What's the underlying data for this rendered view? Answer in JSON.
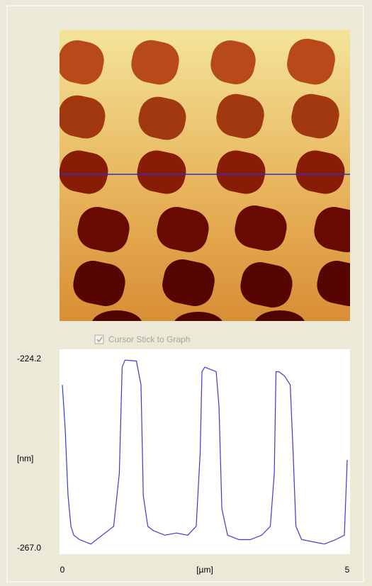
{
  "checkbox": {
    "label": "Cursor Stick to Graph",
    "checked": true
  },
  "profile": {
    "type": "line",
    "color": "#3a3ad0",
    "y_label": "[nm]",
    "x_label": "[µm]",
    "xlim": [
      0,
      5
    ],
    "xticks": [
      0,
      5
    ],
    "ylim": [
      -267.0,
      -224.2
    ],
    "yticks": [
      {
        "value": -267.0,
        "label": "-267.0"
      },
      -224.2
    ],
    "x": [
      0,
      0.05,
      0.1,
      0.15,
      0.2,
      0.3,
      0.5,
      0.7,
      0.9,
      1.0,
      1.05,
      1.1,
      1.2,
      1.3,
      1.38,
      1.42,
      1.5,
      1.6,
      1.8,
      2.0,
      2.2,
      2.35,
      2.42,
      2.45,
      2.5,
      2.6,
      2.7,
      2.75,
      2.8,
      2.9,
      3.1,
      3.3,
      3.5,
      3.65,
      3.72,
      3.75,
      3.8,
      3.9,
      4.0,
      4.05,
      4.1,
      4.2,
      4.4,
      4.6,
      4.8,
      4.95,
      5.0
    ],
    "values": [
      -230,
      -240,
      -255,
      -262,
      -264,
      -265,
      -266,
      -264,
      -262,
      -250,
      -226,
      -224.4,
      -224.5,
      -224.6,
      -230,
      -255,
      -262,
      -263,
      -264,
      -263.5,
      -264,
      -262,
      -245,
      -227,
      -226,
      -226.5,
      -227,
      -235,
      -258,
      -264,
      -265,
      -265,
      -264,
      -262,
      -250,
      -227,
      -227,
      -228,
      -230,
      -245,
      -262,
      -265,
      -265.5,
      -266,
      -265,
      -264,
      -247
    ]
  }
}
